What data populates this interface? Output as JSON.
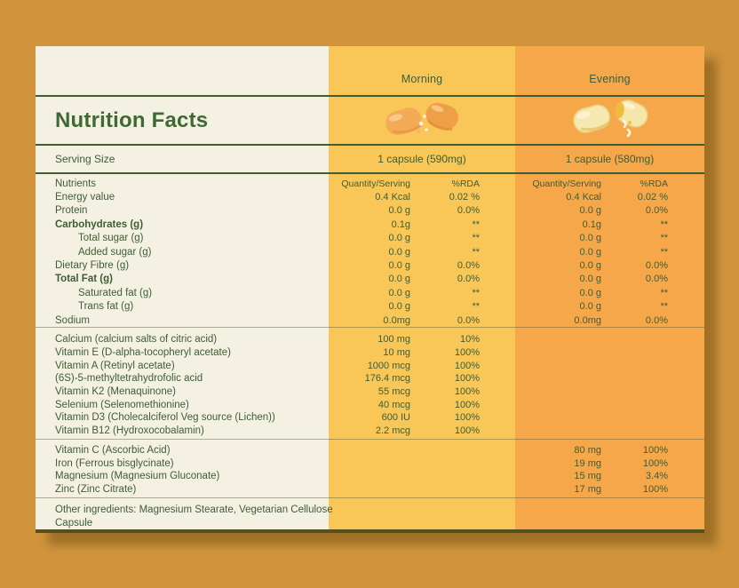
{
  "title": "Nutrition Facts",
  "serving": {
    "label": "Serving Size",
    "morning": "1 capsule (590mg)",
    "evening": "1 capsule (580mg)"
  },
  "columns": {
    "morning_label": "Morning",
    "evening_label": "Evening"
  },
  "headers": {
    "nutrients": "Nutrients",
    "quantity_serving": "Quantity/Serving",
    "rda": "%RDA"
  },
  "icons": {
    "morning": "open-capsule-orange-icon",
    "evening": "open-capsule-yellow-icon"
  },
  "colors": {
    "background": "#d1943d",
    "card": "#f4f1e2",
    "morning_column": "#f8c758",
    "evening_column": "#f5a74a",
    "text_green": "#3e5c36"
  },
  "nutrients": [
    {
      "name": "Energy value",
      "style": "normal",
      "morning": {
        "q": "0.4 Kcal",
        "r": "0.02 %"
      },
      "evening": {
        "q": "0.4 Kcal",
        "r": "0.02 %"
      }
    },
    {
      "name": "Protein",
      "style": "normal",
      "morning": {
        "q": "0.0 g",
        "r": "0.0%"
      },
      "evening": {
        "q": "0.0 g",
        "r": "0.0%"
      }
    },
    {
      "name": "Carbohydrates (g)",
      "style": "bold",
      "morning": {
        "q": "0.1g",
        "r": "**"
      },
      "evening": {
        "q": "0.1g",
        "r": "**"
      }
    },
    {
      "name": "Total sugar (g)",
      "style": "indent",
      "morning": {
        "q": "0.0 g",
        "r": "**"
      },
      "evening": {
        "q": "0.0 g",
        "r": "**"
      }
    },
    {
      "name": "Added sugar (g)",
      "style": "indent",
      "morning": {
        "q": "0.0 g",
        "r": "**"
      },
      "evening": {
        "q": "0.0 g",
        "r": "**"
      }
    },
    {
      "name": "Dietary Fibre (g)",
      "style": "normal",
      "morning": {
        "q": "0.0 g",
        "r": "0.0%"
      },
      "evening": {
        "q": "0.0 g",
        "r": "0.0%"
      }
    },
    {
      "name": "Total Fat (g)",
      "style": "bold",
      "morning": {
        "q": "0.0 g",
        "r": "0.0%"
      },
      "evening": {
        "q": "0.0 g",
        "r": "0.0%"
      }
    },
    {
      "name": "Saturated fat (g)",
      "style": "indent",
      "morning": {
        "q": "0.0 g",
        "r": "**"
      },
      "evening": {
        "q": "0.0 g",
        "r": "**"
      }
    },
    {
      "name": "Trans fat (g)",
      "style": "indent",
      "morning": {
        "q": "0.0 g",
        "r": "**"
      },
      "evening": {
        "q": "0.0 g",
        "r": "**"
      }
    },
    {
      "name": "Sodium",
      "style": "normal",
      "morning": {
        "q": "0.0mg",
        "r": "0.0%"
      },
      "evening": {
        "q": "0.0mg",
        "r": "0.0%"
      }
    }
  ],
  "vitamins": [
    {
      "name": "Calcium (calcium salts of citric acid)",
      "q": "100 mg",
      "r": "10%"
    },
    {
      "name": "Vitamin E (D-alpha-tocopheryl acetate)",
      "q": "10 mg",
      "r": "100%"
    },
    {
      "name": "Vitamin A (Retinyl acetate)",
      "q": "1000 mcg",
      "r": "100%"
    },
    {
      "name": "(6S)-5-methyltetrahydrofolic acid",
      "q": "176.4 mcg",
      "r": "100%"
    },
    {
      "name": "Vitamin K2 (Menaquinone)",
      "q": "55 mcg",
      "r": "100%"
    },
    {
      "name": "Selenium  (Selenomethionine)",
      "q": "40 mcg",
      "r": "100%"
    },
    {
      "name": "Vitamin D3 (Cholecalciferol Veg source (Lichen))",
      "q": "600 IU",
      "r": "100%"
    },
    {
      "name": "Vitamin B12 (Hydroxocobalamin)",
      "q": "2.2 mcg",
      "r": "100%"
    }
  ],
  "minerals": [
    {
      "name": "Vitamin C (Ascorbic Acid)",
      "q": "80 mg",
      "r": "100%"
    },
    {
      "name": "Iron (Ferrous bisglycinate)",
      "q": "19 mg",
      "r": "100%"
    },
    {
      "name": "Magnesium (Magnesium Gluconate)",
      "q": "15 mg",
      "r": "3.4%"
    },
    {
      "name": "Zinc (Zinc Citrate)",
      "q": "17 mg",
      "r": "100%"
    }
  ],
  "other_ingredients": "Other ingredients: Magnesium Stearate, Vegetarian Cellulose Capsule"
}
